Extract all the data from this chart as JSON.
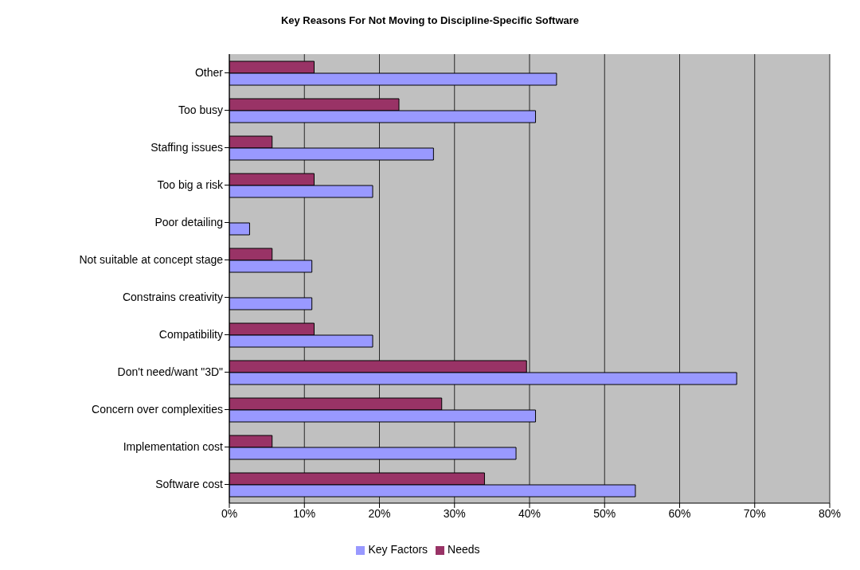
{
  "chart_data": {
    "type": "bar",
    "orientation": "horizontal",
    "title": "Key Reasons For Not Moving to Discipline-Specific Software",
    "categories": [
      "Other",
      "Too busy",
      "Staffing issues",
      "Too big a risk",
      "Poor detailing",
      "Not suitable at concept stage",
      "Constrains creativity",
      "Compatibility",
      "Don't need/want \"3D\"",
      "Concern over complexities",
      "Implementation cost",
      "Software cost"
    ],
    "series": [
      {
        "name": "Key Factors",
        "color": "#9999ff",
        "values": [
          43.6,
          40.8,
          27.2,
          19.1,
          2.7,
          11.0,
          11.0,
          19.1,
          67.6,
          40.8,
          38.2,
          54.1
        ]
      },
      {
        "name": "Needs",
        "color": "#993366",
        "values": [
          11.3,
          22.6,
          5.7,
          11.3,
          0,
          5.7,
          0,
          11.3,
          39.6,
          28.3,
          5.7,
          34.0
        ]
      }
    ],
    "xlim": [
      0,
      80
    ],
    "xticks": [
      {
        "value": 0,
        "label": "0%"
      },
      {
        "value": 10,
        "label": "10%"
      },
      {
        "value": 20,
        "label": "20%"
      },
      {
        "value": 30,
        "label": "30%"
      },
      {
        "value": 40,
        "label": "40%"
      },
      {
        "value": 50,
        "label": "50%"
      },
      {
        "value": 60,
        "label": "60%"
      },
      {
        "value": 70,
        "label": "70%"
      },
      {
        "value": 80,
        "label": "80%"
      }
    ],
    "grid": "x",
    "legend": "bottom"
  }
}
